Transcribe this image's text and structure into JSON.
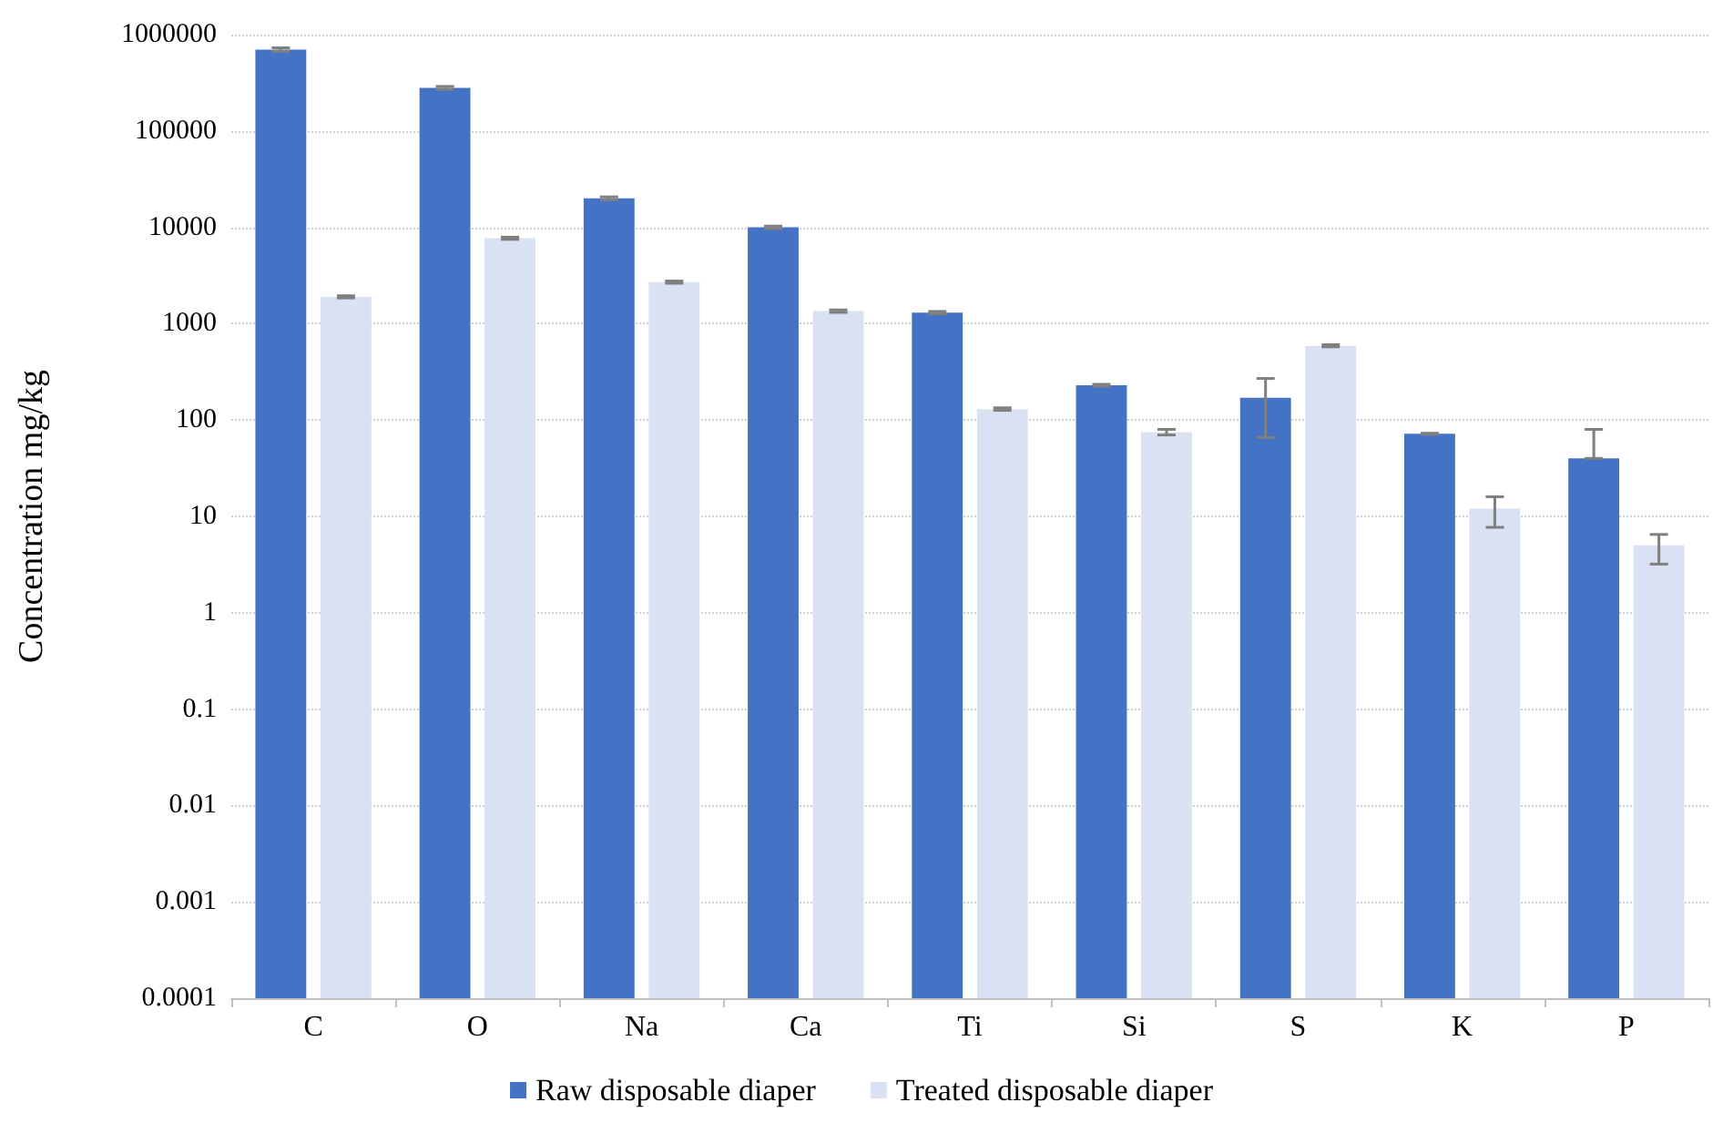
{
  "chart_data": {
    "type": "bar",
    "ylabel": "Concentration mg/kg",
    "categories": [
      "C",
      "O",
      "Na",
      "Ca",
      "Ti",
      "Si",
      "S",
      "K",
      "P"
    ],
    "series": [
      {
        "name": "Raw disposable diaper",
        "color": "#4472c4",
        "values": [
          700000,
          280000,
          20000,
          10000,
          1300,
          230,
          170,
          72,
          40
        ],
        "errors": [
          [
            670000,
            730000
          ],
          [
            270000,
            290000
          ],
          [
            19300,
            20700
          ],
          [
            9700,
            10300
          ],
          [
            1260,
            1340
          ],
          [
            225,
            235
          ],
          [
            66,
            270
          ],
          [
            71,
            73
          ],
          [
            40,
            80
          ]
        ]
      },
      {
        "name": "Treated disposable diaper",
        "color": "#d9e1f2",
        "values": [
          1900,
          7700,
          2700,
          1350,
          130,
          75,
          590,
          12,
          5
        ],
        "errors": [
          [
            1850,
            1950
          ],
          [
            7500,
            7900
          ],
          [
            2630,
            2770
          ],
          [
            1310,
            1390
          ],
          [
            126,
            134
          ],
          [
            70,
            80
          ],
          [
            575,
            605
          ],
          [
            7.7,
            16
          ],
          [
            3.2,
            6.5
          ]
        ]
      }
    ],
    "log": "y",
    "ylim": [
      0.0001,
      1000000
    ],
    "yticks": [
      0.0001,
      0.001,
      0.01,
      0.1,
      1,
      10,
      100,
      1000,
      10000,
      100000,
      1000000
    ],
    "grid": "y",
    "legend": "bottom"
  }
}
